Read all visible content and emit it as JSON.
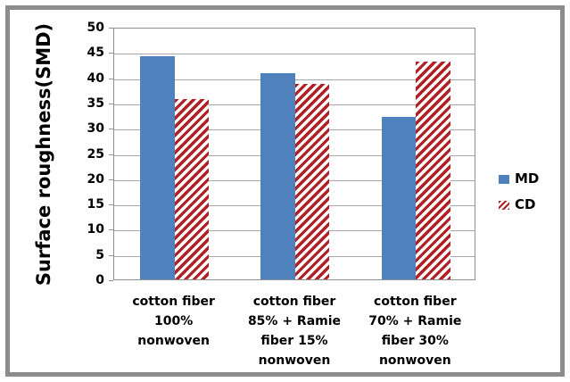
{
  "chart_data": {
    "type": "bar",
    "title": "",
    "xlabel": "",
    "ylabel": "Surface roughness(SMD)",
    "ylim": [
      0,
      50
    ],
    "ytick_step": 5,
    "grid": true,
    "legend_position": "right",
    "categories": [
      "cotton fiber 100% nonwoven",
      "cotton fiber 85% + Ramie fiber 15% nonwoven",
      "cotton fiber 70% + Ramie fiber 30% nonwoven"
    ],
    "category_lines": [
      [
        "cotton fiber",
        "100%",
        "nonwoven"
      ],
      [
        "cotton fiber",
        "85% + Ramie",
        "fiber 15%",
        "nonwoven"
      ],
      [
        "cotton fiber",
        "70% + Ramie",
        "fiber 30%",
        "nonwoven"
      ]
    ],
    "series": [
      {
        "name": "MD",
        "values": [
          44.4,
          41.0,
          32.4
        ],
        "color": "#4f81bd",
        "pattern": "solid"
      },
      {
        "name": "CD",
        "values": [
          35.9,
          38.8,
          43.3
        ],
        "color": "#b02024",
        "pattern": "diagonal-hatch"
      }
    ]
  },
  "colors": {
    "frame_border": "#8c8c8c",
    "gridline": "#a8a8a8",
    "axis_line": "#909090",
    "md_bar": "#4f81bd",
    "cd_hatch": "#b02024",
    "text": "#000000"
  }
}
